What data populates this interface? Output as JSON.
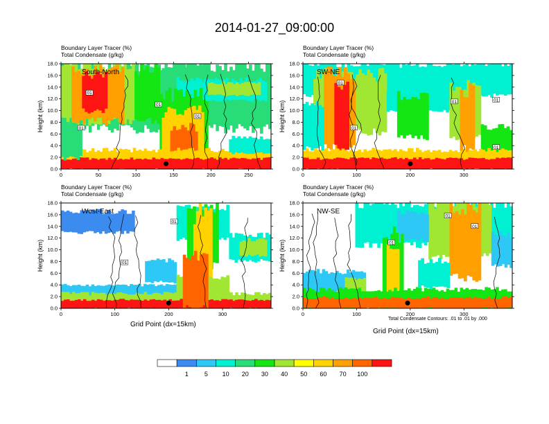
{
  "title": "2014-01-27_09:00:00",
  "panel_header": {
    "tracer": "Boundary Layer Tracer   (%)",
    "condensate": "Total Condensate   (g/kg)"
  },
  "ylabel": "Height (km)",
  "xlabel": "Grid Point (dx=15km)",
  "contour_note": "Total Condensate Contours: .01 to .01 by .000",
  "colors": {
    "levels": [
      "#ffffff",
      "#3c8cf0",
      "#2dc8f5",
      "#00f0d2",
      "#28dc78",
      "#14e614",
      "#a0e632",
      "#ffff00",
      "#ffd200",
      "#ffa000",
      "#ff6400",
      "#ff1414"
    ],
    "contour_line": "#000000"
  },
  "colorbar": {
    "labels": [
      "1",
      "5",
      "10",
      "20",
      "30",
      "40",
      "50",
      "60",
      "70",
      "100"
    ]
  },
  "chart_data": [
    {
      "type": "heatmap",
      "name": "South-North",
      "x_ticks": [
        "0",
        "50",
        "100",
        "150",
        "200",
        "250"
      ],
      "x_tick_values": [
        0,
        50,
        100,
        150,
        200,
        250
      ],
      "xlim": [
        0,
        280
      ],
      "y_ticks": [
        "0.0",
        "2.0",
        "4.0",
        "6.0",
        "8.0",
        "10.0",
        "12.0",
        "14.0",
        "16.0",
        "18.0"
      ],
      "ylim": [
        0,
        18
      ],
      "contour_labels": [
        {
          "text": "01",
          "x": 38,
          "y": 13.0
        },
        {
          "text": "01",
          "x": 27,
          "y": 7.0
        },
        {
          "text": "01",
          "x": 130,
          "y": 11.0
        },
        {
          "text": "01",
          "x": 182,
          "y": 9.0
        }
      ],
      "marker": {
        "x": 140,
        "y": 0.9
      }
    },
    {
      "type": "heatmap",
      "name": "SW-NE",
      "x_ticks": [
        "0",
        "100",
        "200",
        "300"
      ],
      "x_tick_values": [
        0,
        100,
        200,
        300
      ],
      "xlim": [
        0,
        390
      ],
      "y_ticks": [
        "0.0",
        "2.0",
        "4.0",
        "6.0",
        "8.0",
        "10.0",
        "12.0",
        "14.0",
        "16.0",
        "18.0"
      ],
      "ylim": [
        0,
        18
      ],
      "contour_labels": [
        {
          "text": "01",
          "x": 70,
          "y": 14.7
        },
        {
          "text": "01",
          "x": 95,
          "y": 7.0
        },
        {
          "text": "01",
          "x": 282,
          "y": 11.5
        },
        {
          "text": "01",
          "x": 360,
          "y": 11.8
        },
        {
          "text": "01",
          "x": 360,
          "y": 3.7
        }
      ],
      "marker": {
        "x": 200,
        "y": 0.9
      }
    },
    {
      "type": "heatmap",
      "name": "West-East",
      "x_ticks": [
        "0",
        "100",
        "200",
        "300"
      ],
      "x_tick_values": [
        0,
        100,
        200,
        300
      ],
      "xlim": [
        0,
        390
      ],
      "y_ticks": [
        "0.0",
        "2.0",
        "4.0",
        "6.0",
        "8.0",
        "10.0",
        "12.0",
        "14.0",
        "16.0",
        "18.0"
      ],
      "ylim": [
        0,
        18
      ],
      "contour_labels": [
        {
          "text": "01",
          "x": 118,
          "y": 7.8
        },
        {
          "text": "01",
          "x": 210,
          "y": 14.8
        }
      ],
      "marker": {
        "x": 200,
        "y": 0.9
      }
    },
    {
      "type": "heatmap",
      "name": "NW-SE",
      "x_ticks": [
        "0",
        "100",
        "200",
        "300"
      ],
      "x_tick_values": [
        0,
        100,
        200,
        300
      ],
      "xlim": [
        0,
        390
      ],
      "y_ticks": [
        "0.0",
        "2.0",
        "4.0",
        "6.0",
        "8.0",
        "10.0",
        "12.0",
        "14.0",
        "16.0",
        "18.0"
      ],
      "ylim": [
        0,
        18
      ],
      "contour_labels": [
        {
          "text": "01",
          "x": 270,
          "y": 15.8
        },
        {
          "text": "01",
          "x": 320,
          "y": 14.0
        },
        {
          "text": "01",
          "x": 165,
          "y": 11.2
        }
      ],
      "marker": {
        "x": 195,
        "y": 0.9
      }
    }
  ]
}
